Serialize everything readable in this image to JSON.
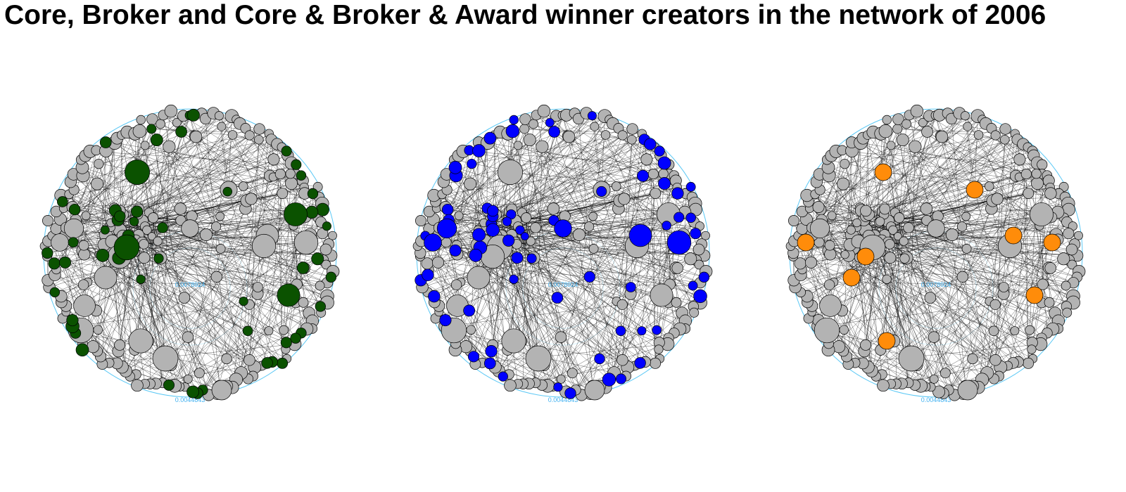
{
  "title": "Core, Broker and Core & Broker & Award winner creators in the network of 2006",
  "colors": {
    "ring": "#5bc8f5",
    "ring_label": "#3fb0f0",
    "edge": "#000000",
    "node_default": "#b3b3b3",
    "node_stroke": "#000000"
  },
  "panels": [
    {
      "name": "core",
      "highlight_color": "#0b5200",
      "ring_labels": [
        "0.0078924",
        "0.0044843"
      ]
    },
    {
      "name": "broker",
      "highlight_color": "#0000ff",
      "ring_labels": [
        "0.0078924",
        "0.0044843"
      ]
    },
    {
      "name": "core-broker-award",
      "highlight_color": "#ff8c0a",
      "ring_labels": [
        "0.0078924",
        "0.0044843"
      ]
    }
  ]
}
